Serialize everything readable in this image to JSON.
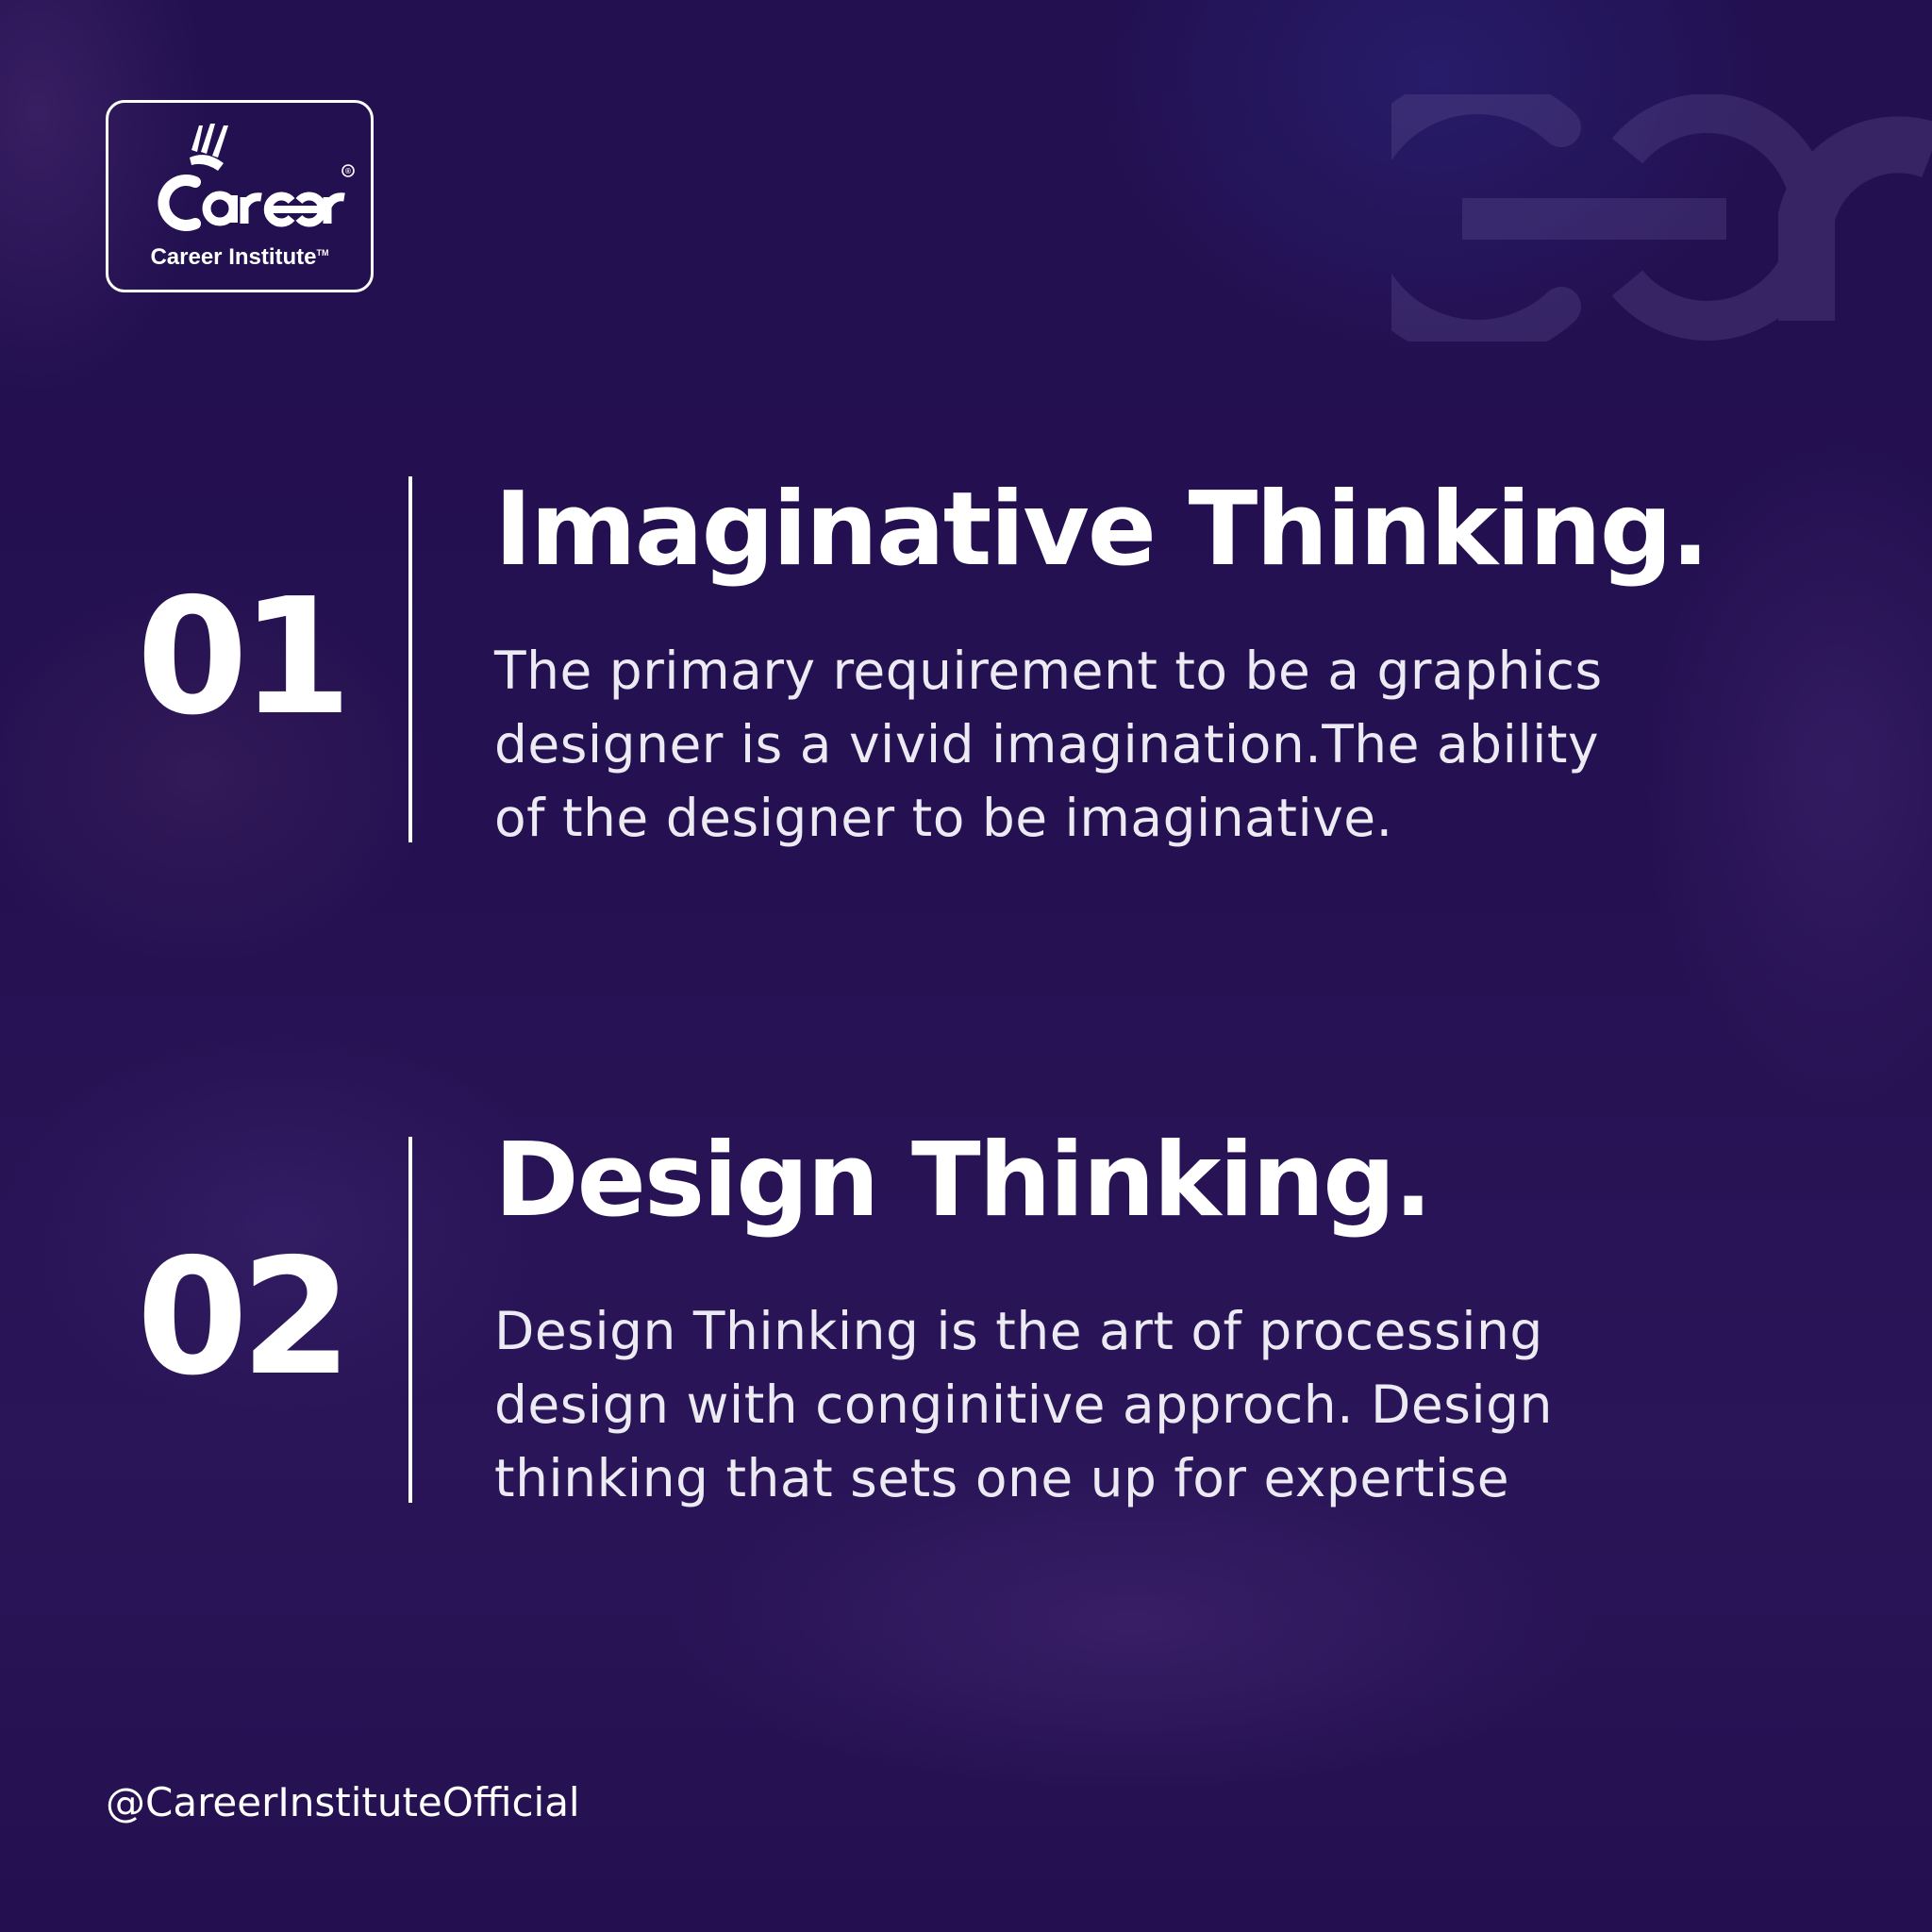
{
  "brand": {
    "logo_wordmark": "Career",
    "logo_caption": "Career Institute",
    "trademark": "TM",
    "registered": "®"
  },
  "items": [
    {
      "number": "01",
      "title": "Imaginative Thinking.",
      "description_lines": [
        "The primary requirement to be a graphics",
        "designer is a vivid imagination.The ability",
        "of the designer to be imaginative."
      ]
    },
    {
      "number": "02",
      "title": "Design Thinking.",
      "description_lines": [
        "Design Thinking is the art of processing",
        "design with conginitive approch. Design",
        "thinking that sets one up for expertise"
      ]
    }
  ],
  "footer": {
    "handle": "@CareerInstituteOfficial"
  },
  "colors": {
    "background": "#23104f",
    "text": "#ffffff",
    "description_text": "#eceaf2"
  },
  "icons": {
    "logo": "career-logo-icon",
    "watermark": "career-watermark-icon"
  }
}
